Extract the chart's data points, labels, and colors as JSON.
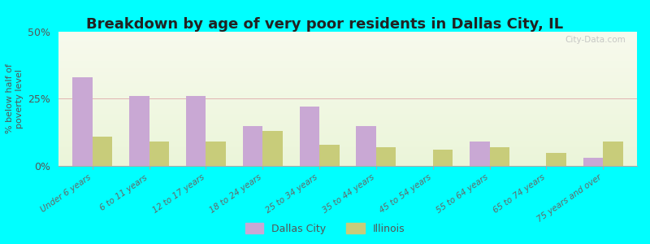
{
  "title": "Breakdown by age of very poor residents in Dallas City, IL",
  "ylabel": "% below half of\npoverty level",
  "categories": [
    "Under 6 years",
    "6 to 11 years",
    "12 to 17 years",
    "18 to 24 years",
    "25 to 34 years",
    "35 to 44 years",
    "45 to 54 years",
    "55 to 64 years",
    "65 to 74 years",
    "75 years and over"
  ],
  "dallas_city": [
    33,
    26,
    26,
    15,
    22,
    15,
    0,
    9,
    0,
    3
  ],
  "illinois": [
    11,
    9,
    9,
    13,
    8,
    7,
    6,
    7,
    5,
    9
  ],
  "dallas_color": "#c9a8d4",
  "illinois_color": "#c8cc7a",
  "bg_color": "#00ffff",
  "ylim": [
    0,
    50
  ],
  "yticks": [
    0,
    25,
    50
  ],
  "ytick_labels": [
    "0%",
    "25%",
    "50%"
  ],
  "bar_width": 0.35,
  "title_fontsize": 13,
  "legend_labels": [
    "Dallas City",
    "Illinois"
  ],
  "watermark": "City-Data.com"
}
